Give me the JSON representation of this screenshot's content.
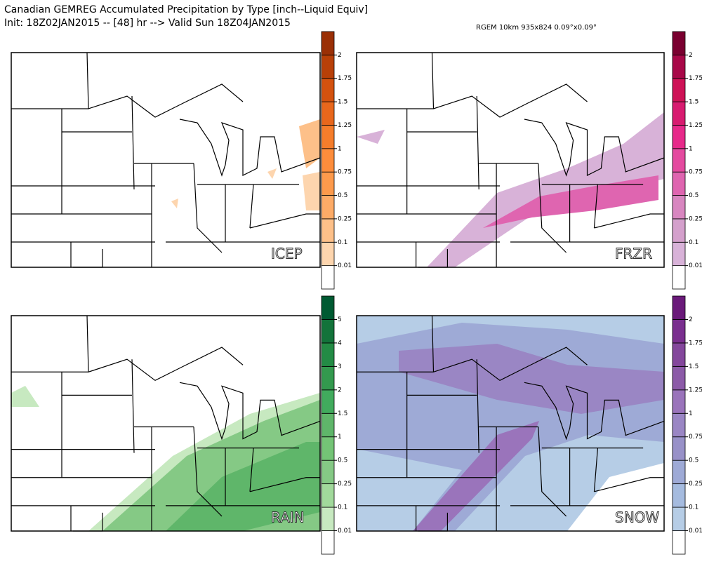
{
  "header": {
    "title": "Canadian GEMREG Accumulated Precipitation by Type [inch--Liquid Equiv]",
    "subtitle": "Init: 18Z02JAN2015 -- [48] hr --> Valid Sun 18Z04JAN2015",
    "model_info": "RGEM 10km 935x824 0.09°x0.09°"
  },
  "panels": [
    {
      "label": "ICEP",
      "colorbar": {
        "labels": [
          "0.01",
          "0.1",
          "0.25",
          "0.5",
          "0.75",
          "1",
          "1.25",
          "1.5",
          "1.75",
          "2"
        ],
        "colors": [
          "#ffffff",
          "#fdd5ae",
          "#fdc089",
          "#fdab67",
          "#fd9a4c",
          "#fd8d3c",
          "#f57d2b",
          "#e8671c",
          "#d4520f",
          "#b84008",
          "#9a3006"
        ]
      }
    },
    {
      "label": "FRZR",
      "colorbar": {
        "labels": [
          "0.01",
          "0.1",
          "0.25",
          "0.5",
          "0.75",
          "1",
          "1.25",
          "1.5",
          "1.75",
          "2"
        ],
        "colors": [
          "#ffffff",
          "#d8b2d8",
          "#d4a0cc",
          "#d886c0",
          "#df65b0",
          "#e44a9f",
          "#e7298a",
          "#d81b70",
          "#ce1256",
          "#a80848",
          "#7a0030"
        ]
      }
    },
    {
      "label": "RAIN",
      "colorbar": {
        "labels": [
          "0.01",
          "0.1",
          "0.25",
          "0.5",
          "1",
          "1.5",
          "2",
          "3",
          "4",
          "5"
        ],
        "colors": [
          "#ffffff",
          "#c7e9c0",
          "#a1d99b",
          "#85c985",
          "#74c476",
          "#5fb66a",
          "#41ab5d",
          "#33994e",
          "#238b45",
          "#13733a",
          "#005a32"
        ]
      }
    },
    {
      "label": "SNOW",
      "colorbar": {
        "labels": [
          "0.01",
          "0.1",
          "0.25",
          "0.5",
          "0.75",
          "1",
          "1.25",
          "1.5",
          "1.75",
          "2"
        ],
        "colors": [
          "#ffffff",
          "#b6cde6",
          "#a5bbdf",
          "#9eaad6",
          "#9891c8",
          "#9a86c4",
          "#9a74bb",
          "#8c5ba8",
          "#84479c",
          "#7a2f8f",
          "#6a1a7a"
        ]
      }
    }
  ]
}
